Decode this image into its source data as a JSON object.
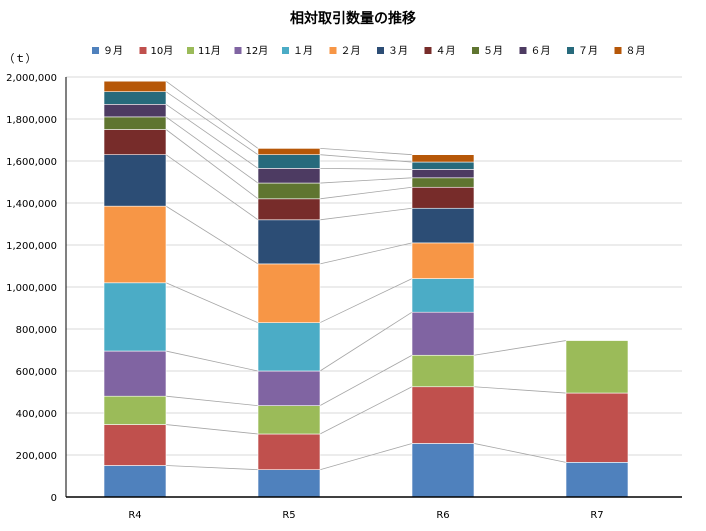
{
  "chart_data": {
    "type": "bar",
    "stacked": true,
    "title": "相対取引数量の推移",
    "ylabel": "（ｔ）",
    "xlabel": "",
    "categories": [
      "R4",
      "R5",
      "R6",
      "R7"
    ],
    "ylim": [
      0,
      2000000
    ],
    "yticks": [
      0,
      200000,
      400000,
      600000,
      800000,
      1000000,
      1200000,
      1400000,
      1600000,
      1800000,
      2000000
    ],
    "ytick_labels": [
      "0",
      "200,000",
      "400,000",
      "600,000",
      "800,000",
      "1,000,000",
      "1,200,000",
      "1,400,000",
      "1,600,000",
      "1,800,000",
      "2,000,000"
    ],
    "grid": true,
    "legend_position": "top",
    "series_lines": true,
    "series": [
      {
        "name": "９月",
        "color": "#4f81bd",
        "values": [
          150000,
          130000,
          255000,
          165000
        ]
      },
      {
        "name": "10月",
        "color": "#c0504d",
        "values": [
          195000,
          170000,
          270000,
          330000
        ]
      },
      {
        "name": "11月",
        "color": "#9bbb59",
        "values": [
          135000,
          135000,
          150000,
          250000
        ]
      },
      {
        "name": "12月",
        "color": "#8064a2",
        "values": [
          215000,
          165000,
          205000,
          null
        ]
      },
      {
        "name": "１月",
        "color": "#4bacc6",
        "values": [
          325000,
          230000,
          160000,
          null
        ]
      },
      {
        "name": "２月",
        "color": "#f79646",
        "values": [
          365000,
          280000,
          170000,
          null
        ]
      },
      {
        "name": "３月",
        "color": "#2c4d75",
        "values": [
          245000,
          210000,
          165000,
          null
        ]
      },
      {
        "name": "４月",
        "color": "#772c2a",
        "values": [
          120000,
          100000,
          100000,
          null
        ]
      },
      {
        "name": "５月",
        "color": "#5f7530",
        "values": [
          60000,
          75000,
          45000,
          null
        ]
      },
      {
        "name": "６月",
        "color": "#4d3b62",
        "values": [
          60000,
          70000,
          40000,
          null
        ]
      },
      {
        "name": "７月",
        "color": "#276a7c",
        "values": [
          60000,
          65000,
          35000,
          null
        ]
      },
      {
        "name": "８月",
        "color": "#b65708",
        "values": [
          50000,
          30000,
          35000,
          null
        ]
      }
    ]
  }
}
